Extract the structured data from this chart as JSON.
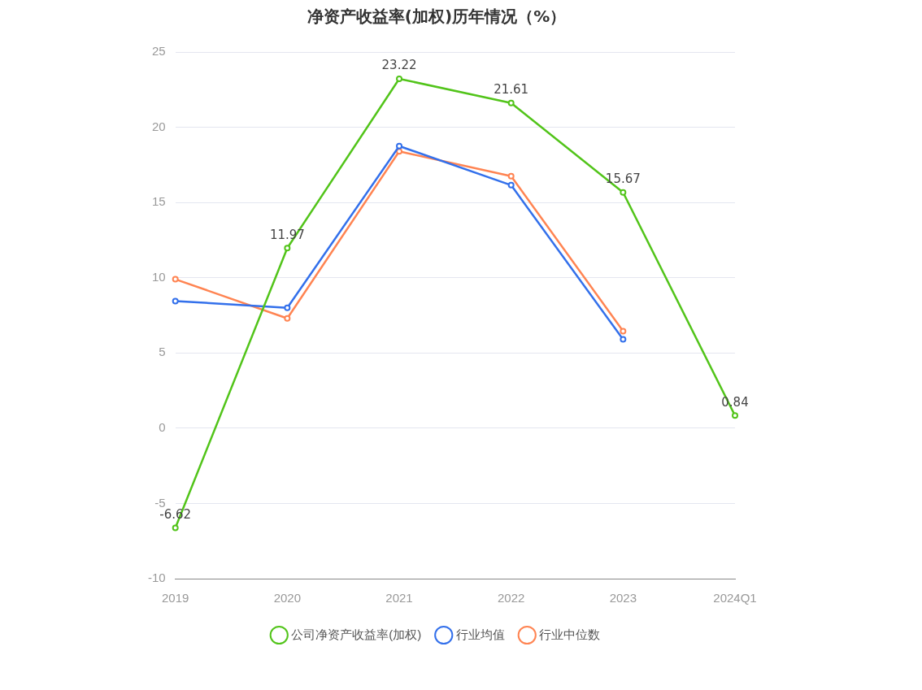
{
  "chart_data": {
    "type": "line",
    "title": "净资产收益率(加权)历年情况（%）",
    "categories": [
      "2019",
      "2020",
      "2021",
      "2022",
      "2023",
      "2024Q1"
    ],
    "series": [
      {
        "name": "公司净资产收益率(加权)",
        "color": "#52c41a",
        "values": [
          -6.62,
          11.97,
          23.22,
          21.61,
          15.67,
          0.84
        ],
        "value_labels": [
          "-6.62",
          "11.97",
          "23.22",
          "21.61",
          "15.67",
          "0.84"
        ]
      },
      {
        "name": "行业均值",
        "color": "#3370eb",
        "values": [
          8.45,
          8.0,
          18.75,
          16.15,
          5.9,
          null
        ]
      },
      {
        "name": "行业中位数",
        "color": "#ff8452",
        "values": [
          9.9,
          7.3,
          18.4,
          16.75,
          6.45,
          null
        ]
      }
    ],
    "ylim": [
      -10,
      25
    ],
    "yticks": [
      -10,
      -5,
      0,
      5,
      10,
      15,
      20,
      25
    ],
    "grid": "y",
    "legend": "bottom",
    "marker": "circle",
    "line_style": "solid"
  }
}
